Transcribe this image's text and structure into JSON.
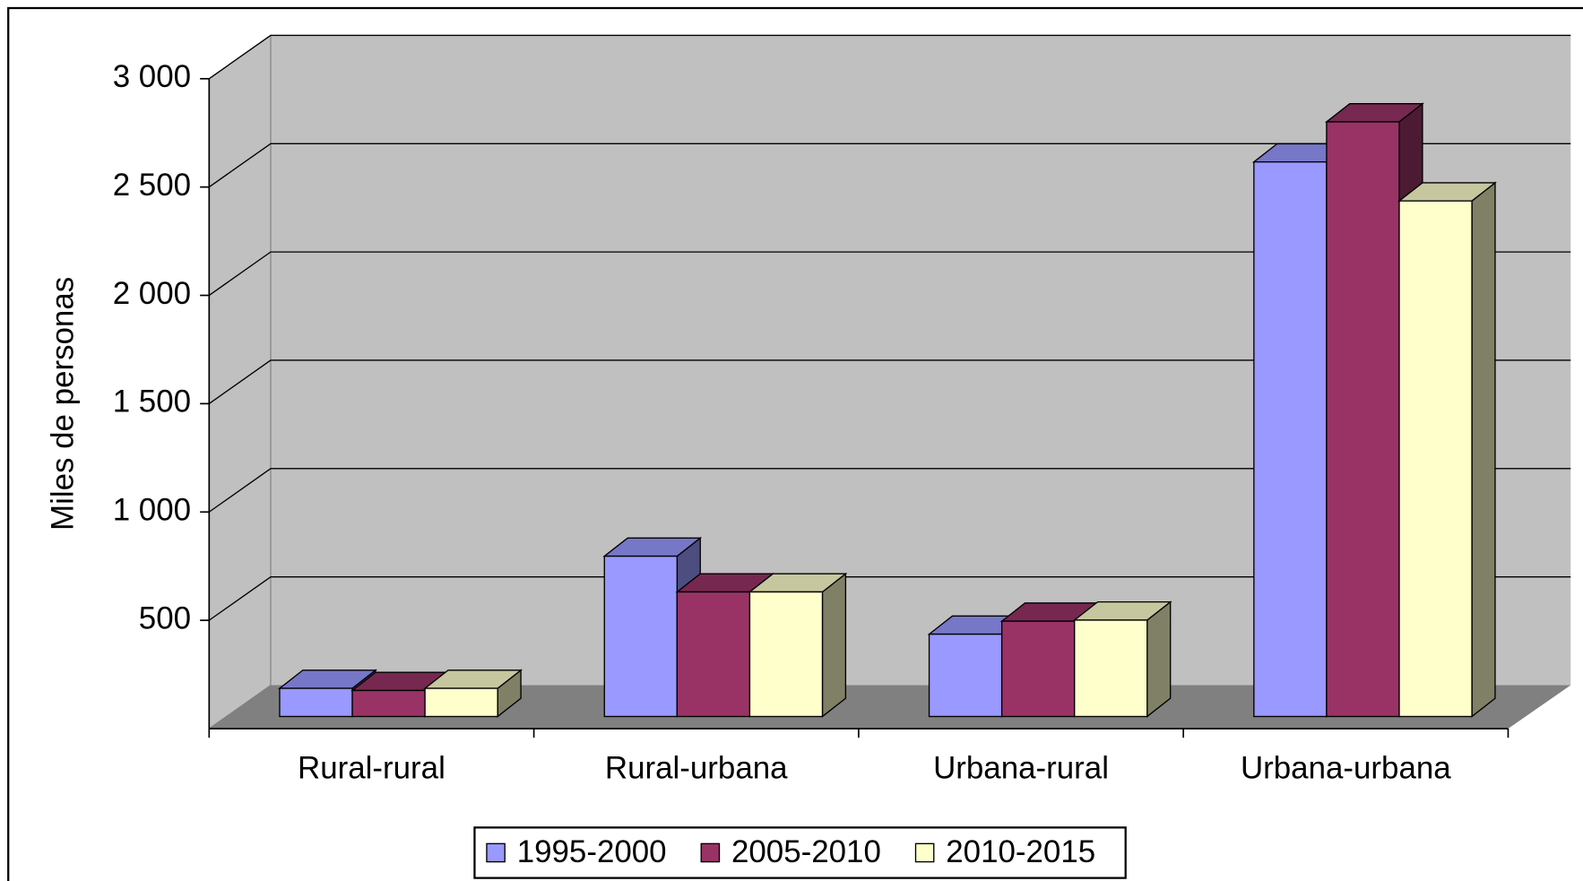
{
  "chart_data": {
    "type": "bar3d",
    "y_label": "Miles de personas",
    "categories": [
      "Rural-rural",
      "Rural-urbana",
      "Urbana-rural",
      "Urbana-urbana"
    ],
    "series": [
      {
        "name": "1995-2000",
        "color": "#9999ff",
        "values": [
          130,
          740,
          380,
          2560
        ]
      },
      {
        "name": "2005-2010",
        "color": "#993366",
        "values": [
          120,
          575,
          440,
          2745
        ]
      },
      {
        "name": "2010-2015",
        "color": "#ffffcc",
        "values": [
          130,
          575,
          445,
          2380
        ]
      }
    ],
    "ylim": [
      0,
      3000
    ],
    "yticks": [
      500,
      {
        "value": 1000,
        "label": "1 000"
      },
      {
        "value": 1500,
        "label": "1 500"
      },
      {
        "value": 2000,
        "label": "2 000"
      },
      {
        "value": 2500,
        "label": "2 500"
      },
      {
        "value": 3000,
        "label": "3 000"
      }
    ],
    "grid": true,
    "legend": "bottom"
  }
}
